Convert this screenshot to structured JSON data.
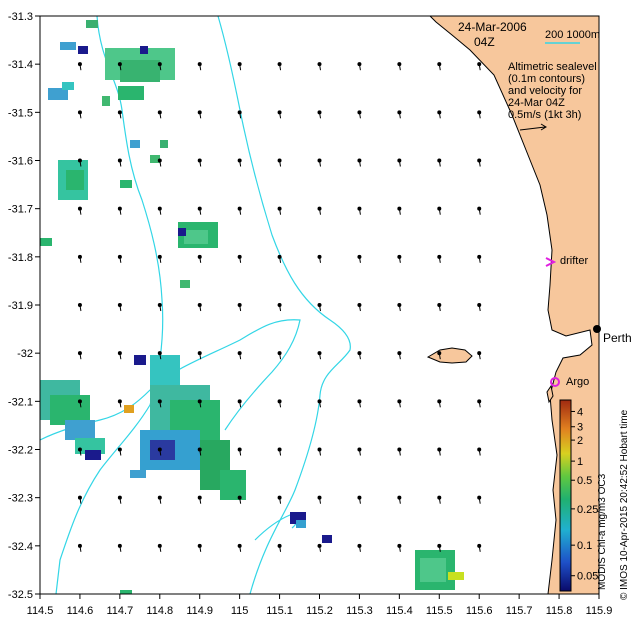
{
  "map": {
    "date": "24-Mar-2006",
    "time": "04Z",
    "scale_bar": "200  1000m",
    "legend_lines": [
      "Altimetric sealevel",
      "(0.1m contours)",
      "and velocity for",
      "24-Mar 04Z",
      "0.5m/s (1kt 3h)"
    ],
    "drifter_label": "drifter",
    "argo_label": "Argo",
    "city_label": "Perth",
    "side_caption": "© IMOS 10-Apr-2015 20:42:52 Hobart time",
    "colorbar_caption": "MODIS Chl-a mg/m3 OC3",
    "colors": {
      "land": "#f7c79c",
      "contour": "#33d6e6",
      "argo": "#e020e0",
      "drifter": "#e020e0",
      "chl_low": "#1a1a8c",
      "chl_mid": "#2ab56e",
      "chl_high": "#c84a10"
    }
  },
  "chart_data": {
    "type": "heatmap",
    "title": "",
    "xlabel": "",
    "ylabel": "",
    "xlim": [
      114.5,
      115.9
    ],
    "ylim": [
      -32.5,
      -31.3
    ],
    "x_ticks": [
      "114.5",
      "114.6",
      "114.7",
      "114.8",
      "114.9",
      "115",
      "115.1",
      "115.2",
      "115.3",
      "115.4",
      "115.5",
      "115.6",
      "115.7",
      "115.8",
      "115.9"
    ],
    "y_ticks": [
      "-31.3",
      "-31.4",
      "-31.5",
      "-31.6",
      "-31.7",
      "-31.8",
      "-31.9",
      "-32",
      "-32.1",
      "-32.2",
      "-32.3",
      "-32.4",
      "-32.5"
    ],
    "colorbar": {
      "label": "MODIS Chl-a mg/m3 OC3",
      "ticks": [
        "0.05",
        "0.1",
        "0.25",
        "0.5",
        "1",
        "2",
        "3",
        "4"
      ]
    },
    "markers": [
      {
        "name": "drifter",
        "lon": 115.75,
        "lat": -31.81
      },
      {
        "name": "Argo",
        "lon": 115.75,
        "lat": -32.08
      },
      {
        "name": "Perth",
        "lon": 115.86,
        "lat": -31.95
      }
    ]
  }
}
